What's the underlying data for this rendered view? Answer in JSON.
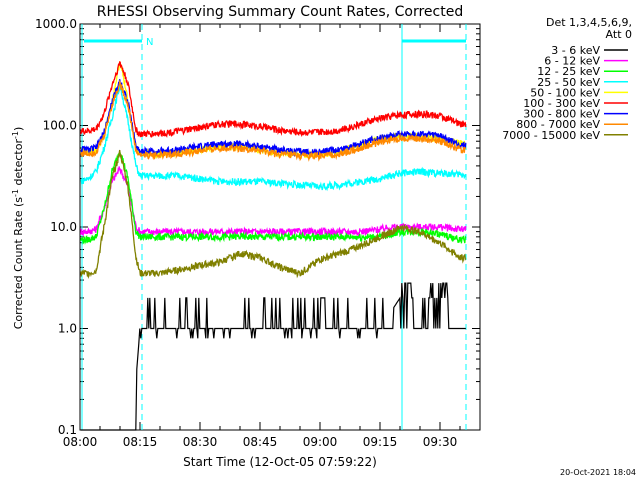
{
  "chart_data": {
    "type": "line",
    "title": "RHESSI Observing Summary Count Rates, Corrected",
    "xlabel": "Start Time (12-Oct-05 07:59:22)",
    "ylabel_main": "Corrected Count Rate (s",
    "ylabel_sup1": "-1",
    "ylabel_mid": " detector",
    "ylabel_sup2": "-1",
    "ylabel_end": ")",
    "y_scale": "log",
    "ylim": [
      0.1,
      1000
    ],
    "xlim_min": [
      0,
      100
    ],
    "x_ticks": [
      {
        "t": 0,
        "label": "08:00"
      },
      {
        "t": 15,
        "label": "08:15"
      },
      {
        "t": 30,
        "label": "08:30"
      },
      {
        "t": 45,
        "label": "08:45"
      },
      {
        "t": 60,
        "label": "09:00"
      },
      {
        "t": 75,
        "label": "09:15"
      },
      {
        "t": 90,
        "label": "09:30"
      }
    ],
    "y_ticks": [
      {
        "v": 0.1,
        "label": "0.1"
      },
      {
        "v": 1,
        "label": "1.0"
      },
      {
        "v": 10,
        "label": "10.0"
      },
      {
        "v": 100,
        "label": "100.0"
      },
      {
        "v": 1000,
        "label": "1000.0"
      }
    ],
    "legend_header": [
      "Det 1,3,4,5,6,9,",
      "Att 0"
    ],
    "legend_position": "right",
    "series": [
      {
        "name": "3 - 6 keV",
        "color": "#000000",
        "x": [
          0,
          3,
          5,
          6,
          7,
          8,
          9,
          10,
          11,
          12,
          13,
          15,
          20,
          25,
          30,
          40,
          45,
          50,
          55,
          60,
          65,
          68,
          70,
          72,
          75,
          80,
          82,
          85,
          86,
          88,
          90,
          92,
          94,
          95,
          96,
          100
        ],
        "values": [
          0.1,
          0.1,
          0.1,
          0.1,
          0.1,
          0.1,
          0.1,
          0.1,
          0.1,
          0.1,
          0.1,
          1.0,
          1.0,
          1.0,
          1.0,
          1.0,
          1.0,
          1.0,
          1.0,
          1.0,
          1.0,
          1.0,
          1.0,
          1.0,
          1.0,
          2.0,
          2.0,
          2.8,
          2.8,
          2.0,
          1.8,
          1.0,
          1.0,
          1.0,
          1.0,
          1.0
        ]
      },
      {
        "name": "6 - 12 keV",
        "color": "#ff00ff",
        "x": [
          0,
          2,
          4,
          6,
          8,
          10,
          12,
          14,
          15,
          20,
          30,
          40,
          50,
          60,
          70,
          75,
          78,
          80,
          85,
          90,
          95
        ],
        "values": [
          9,
          9,
          9.5,
          15,
          28,
          38,
          25,
          10,
          9,
          9,
          9,
          9,
          9,
          9,
          9,
          9.5,
          10,
          10,
          10,
          10,
          9.5
        ]
      },
      {
        "name": "12 - 25 keV",
        "color": "#00ff00",
        "x": [
          0,
          2,
          4,
          6,
          8,
          10,
          12,
          14,
          15,
          20,
          30,
          40,
          50,
          60,
          70,
          75,
          78,
          80,
          85,
          90,
          95
        ],
        "values": [
          7.5,
          7.5,
          8,
          15,
          35,
          58,
          30,
          9,
          8,
          8,
          8,
          8,
          8,
          8,
          8,
          8,
          8.5,
          9,
          9,
          8.5,
          7.5
        ]
      },
      {
        "name": "25 - 50 keV",
        "color": "#00ffff",
        "x": [
          0,
          2,
          4,
          6,
          8,
          10,
          12,
          14,
          15,
          20,
          25,
          30,
          35,
          40,
          45,
          50,
          55,
          60,
          65,
          70,
          75,
          80,
          85,
          90,
          95
        ],
        "values": [
          28,
          30,
          35,
          60,
          120,
          250,
          110,
          40,
          32,
          32,
          32,
          30,
          28,
          28,
          28,
          27,
          26,
          25,
          26,
          28,
          30,
          34,
          35,
          34,
          33
        ]
      },
      {
        "name": "50 - 100 keV",
        "color": "#ffff00",
        "x": [
          0,
          2,
          4,
          6,
          8,
          10,
          12,
          14,
          15,
          20,
          25,
          30,
          35,
          40,
          45,
          50,
          55,
          60,
          65,
          70,
          75,
          80,
          85,
          90,
          95
        ],
        "values": [
          55,
          55,
          58,
          80,
          170,
          440,
          170,
          60,
          54,
          52,
          55,
          58,
          62,
          62,
          58,
          54,
          52,
          52,
          55,
          64,
          75,
          80,
          78,
          74,
          67
        ]
      },
      {
        "name": "100 - 300 keV",
        "color": "#ff0000",
        "x": [
          0,
          2,
          4,
          6,
          8,
          10,
          12,
          14,
          15,
          20,
          25,
          30,
          35,
          40,
          45,
          50,
          55,
          60,
          65,
          70,
          75,
          80,
          85,
          90,
          95
        ],
        "values": [
          88,
          88,
          92,
          130,
          250,
          420,
          260,
          90,
          82,
          84,
          88,
          96,
          103,
          104,
          98,
          90,
          86,
          86,
          90,
          103,
          118,
          128,
          130,
          125,
          104
        ]
      },
      {
        "name": "300 - 800 keV",
        "color": "#0000ff",
        "x": [
          0,
          2,
          4,
          6,
          8,
          10,
          12,
          14,
          15,
          20,
          25,
          30,
          35,
          40,
          45,
          50,
          55,
          60,
          65,
          70,
          75,
          80,
          85,
          90,
          95
        ],
        "values": [
          58,
          58,
          60,
          85,
          170,
          280,
          170,
          62,
          56,
          56,
          58,
          62,
          66,
          66,
          62,
          58,
          55,
          55,
          58,
          66,
          76,
          83,
          82,
          79,
          64
        ]
      },
      {
        "name": "800 - 7000 keV",
        "color": "#ff8800",
        "x": [
          0,
          2,
          4,
          6,
          8,
          10,
          12,
          14,
          15,
          20,
          25,
          30,
          35,
          40,
          45,
          50,
          55,
          60,
          65,
          70,
          75,
          80,
          85,
          90,
          95
        ],
        "values": [
          53,
          53,
          55,
          78,
          160,
          260,
          160,
          56,
          51,
          51,
          53,
          56,
          60,
          60,
          56,
          52,
          50,
          50,
          52,
          60,
          69,
          75,
          74,
          71,
          58
        ]
      },
      {
        "name": "7000 - 15000 keV",
        "color": "#808000",
        "x": [
          0,
          2,
          4,
          6,
          8,
          10,
          12,
          14,
          15,
          20,
          25,
          30,
          35,
          40,
          45,
          50,
          55,
          60,
          65,
          70,
          75,
          78,
          80,
          85,
          90,
          95
        ],
        "values": [
          3.5,
          3.5,
          3.7,
          10,
          30,
          55,
          25,
          5,
          3.5,
          3.5,
          3.8,
          4.2,
          4.5,
          5.5,
          5,
          4,
          3.5,
          4.8,
          5.5,
          6.5,
          8,
          9,
          10,
          9,
          7,
          5
        ]
      }
    ],
    "markers": {
      "cyan_bar_label": "N"
    }
  },
  "footer": {
    "timestamp": "20-Oct-2021 18:04"
  }
}
